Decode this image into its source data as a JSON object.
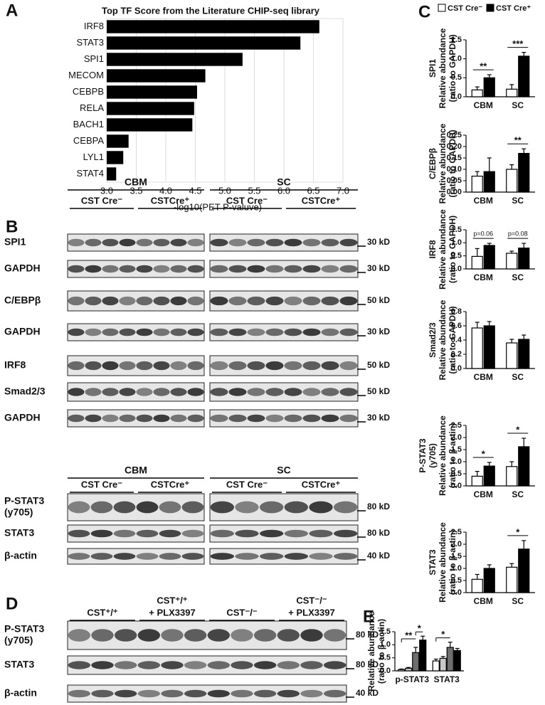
{
  "panel_labels": [
    "A",
    "B",
    "C",
    "D",
    "E"
  ],
  "chart_data": [
    {
      "type": "hbar",
      "title": "Top TF Score from the Literature CHIP-seq library",
      "categories": [
        "IRF8",
        "STAT3",
        "SPI1",
        "MECOM",
        "CEBPB",
        "RELA",
        "BACH1",
        "CEBPA",
        "LYL1",
        "STAT4"
      ],
      "values": [
        6.6,
        6.28,
        5.3,
        4.67,
        4.53,
        4.48,
        4.45,
        3.37,
        3.28,
        3.16
      ],
      "color": "#000000",
      "x_label": "-log10(PET P-valuve)",
      "xlim": [
        3,
        7
      ],
      "xticks": [
        {
          "value": 3,
          "label": "3.0"
        },
        3.5,
        {
          "value": 4,
          "label": "4.0"
        },
        4.5,
        {
          "value": 5,
          "label": "5.0"
        },
        5.5,
        {
          "value": 6,
          "label": "6.0"
        },
        6.5,
        {
          "value": 7,
          "label": "7.0"
        }
      ],
      "grid": true
    },
    {
      "type": "bar",
      "y_label": [
        "SPI1",
        "Relative abundance",
        "(ratio to GAPDH)"
      ],
      "categories": [
        "CBM",
        "SC"
      ],
      "series": [
        {
          "name": "CST Cre⁻",
          "color": "#ffffff",
          "values": [
            0.18,
            0.2
          ],
          "errors": [
            0.08,
            0.12
          ]
        },
        {
          "name": "CST Cre⁺",
          "color": "#000000",
          "values": [
            0.5,
            1.07
          ],
          "errors": [
            0.08,
            0.1
          ]
        }
      ],
      "ylim": [
        0,
        1.5
      ],
      "yticks": [
        {
          "value": 0,
          "label": "0.0"
        },
        0.5,
        {
          "value": 1,
          "label": "1.0"
        },
        1.5
      ],
      "annotations": [
        "**",
        "***"
      ]
    },
    {
      "type": "bar",
      "y_label": [
        "C/EBPβ",
        "Relative abundance",
        "(ratio to GAPDH)"
      ],
      "categories": [
        "CBM",
        "SC"
      ],
      "series": [
        {
          "color": "#ffffff",
          "values": [
            0.07,
            0.1
          ],
          "errors": [
            0.02,
            0.02
          ]
        },
        {
          "color": "#000000",
          "values": [
            0.09,
            0.17
          ],
          "errors": [
            0.06,
            0.02
          ]
        }
      ],
      "ylim": [
        0,
        0.25
      ],
      "yticks": [
        {
          "value": 0,
          "label": "0.00"
        },
        0.05,
        {
          "value": 0.1,
          "label": "0.10"
        },
        0.15,
        {
          "value": 0.2,
          "label": "0.20"
        },
        0.25
      ],
      "annotations": [
        null,
        "**"
      ]
    },
    {
      "type": "bar",
      "y_label": [
        "IRF8",
        "Relative abundance",
        "(ratio to GAPDH)"
      ],
      "categories": [
        "CBM",
        "SC"
      ],
      "series": [
        {
          "color": "#ffffff",
          "values": [
            0.48,
            0.6
          ],
          "errors": [
            0.3,
            0.08
          ]
        },
        {
          "color": "#000000",
          "values": [
            0.9,
            0.8
          ],
          "errors": [
            0.08,
            0.18
          ]
        }
      ],
      "ylim": [
        0,
        1.5
      ],
      "yticks": [
        {
          "value": 0,
          "label": "0.0"
        },
        0.5,
        {
          "value": 1,
          "label": "1.0"
        },
        1.5
      ],
      "annotations": [
        "p=0.06",
        "p=0.08"
      ]
    },
    {
      "type": "bar",
      "y_label": [
        "Smad2/3",
        "Relative abundance",
        "(ratio to GAPDH)"
      ],
      "categories": [
        "CBM",
        "SC"
      ],
      "series": [
        {
          "color": "#ffffff",
          "values": [
            0.57,
            0.36
          ],
          "errors": [
            0.08,
            0.05
          ]
        },
        {
          "color": "#000000",
          "values": [
            0.6,
            0.41
          ],
          "errors": [
            0.06,
            0.06
          ]
        }
      ],
      "ylim": [
        0,
        0.8
      ],
      "yticks": [
        {
          "value": 0,
          "label": "0.0"
        },
        0.2,
        0.4,
        0.6,
        0.8
      ]
    },
    {
      "type": "bar",
      "y_label": [
        "P-STAT3",
        "(y705)",
        "Relative abundance",
        "(ratio to β-actin)"
      ],
      "categories": [
        "CBM",
        "SC"
      ],
      "series": [
        {
          "color": "#ffffff",
          "values": [
            0.4,
            0.8
          ],
          "errors": [
            0.2,
            0.2
          ]
        },
        {
          "color": "#000000",
          "values": [
            0.82,
            1.62
          ],
          "errors": [
            0.15,
            0.35
          ]
        }
      ],
      "ylim": [
        0,
        2.5
      ],
      "yticks": [
        {
          "value": 0,
          "label": "0.0"
        },
        0.5,
        {
          "value": 1,
          "label": "1.0"
        },
        1.5,
        {
          "value": 2,
          "label": "2.0"
        },
        2.5
      ],
      "annotations": [
        "*",
        "*"
      ]
    },
    {
      "type": "bar",
      "y_label": [
        "STAT3",
        "Relative abundance",
        "(ratio to β-actin)"
      ],
      "categories": [
        "CBM",
        "SC"
      ],
      "series": [
        {
          "color": "#ffffff",
          "values": [
            0.55,
            1.05
          ],
          "errors": [
            0.2,
            0.15
          ]
        },
        {
          "color": "#000000",
          "values": [
            1.0,
            1.8
          ],
          "errors": [
            0.15,
            0.35
          ]
        }
      ],
      "ylim": [
        0,
        2.5
      ],
      "yticks": [
        {
          "value": 0,
          "label": "0.0"
        },
        0.5,
        {
          "value": 1,
          "label": "1.0"
        },
        1.5,
        {
          "value": 2,
          "label": "2.0"
        },
        2.5
      ],
      "annotations": [
        null,
        "*"
      ]
    },
    {
      "type": "bar4",
      "y_label": [
        "Relative abundance",
        "(ratio to β-actin)"
      ],
      "categories": [
        "p-STAT3",
        "STAT3"
      ],
      "series": [
        {
          "color": "#ffffff",
          "values": [
            0.05,
            0.38
          ],
          "errors": [
            0.02,
            0.07
          ]
        },
        {
          "color": "#c8c8c8",
          "values": [
            0.1,
            0.48
          ],
          "errors": [
            0.03,
            0.07
          ]
        },
        {
          "color": "#6e6e6e",
          "values": [
            0.7,
            0.9
          ],
          "errors": [
            0.2,
            0.2
          ]
        },
        {
          "color": "#000000",
          "values": [
            1.18,
            0.78
          ],
          "errors": [
            0.15,
            0.08
          ]
        }
      ],
      "ylim": [
        0,
        1.5
      ],
      "yticks": [
        {
          "value": 0,
          "label": "0.0"
        },
        0.5,
        {
          "value": 1,
          "label": "1.0"
        },
        1.5
      ],
      "annotations": [
        "**",
        "*",
        "*"
      ]
    }
  ],
  "blots": {
    "B_upper": {
      "groups": [
        "CBM",
        "SC"
      ],
      "subgroups": [
        [
          "CST Cre⁻",
          "CSTCre⁺"
        ],
        [
          "CST Cre⁻",
          "CSTCre⁺"
        ]
      ],
      "rows": [
        {
          "label": "SPI1",
          "marker": "30 kD"
        },
        {
          "label": "GAPDH",
          "marker": "30 kD"
        },
        {
          "label": "C/EBPβ",
          "marker": "50 kD"
        },
        {
          "label": "GAPDH",
          "marker": "30 kD"
        },
        {
          "label": "IRF8",
          "marker": "50 kD"
        },
        {
          "label": "Smad2/3",
          "marker": "50 kD"
        },
        {
          "label": "GAPDH",
          "marker": "30 kD"
        }
      ]
    },
    "B_lower": {
      "groups": [
        "CBM",
        "SC"
      ],
      "subgroups": [
        [
          "CST Cre⁻",
          "CSTCre⁺"
        ],
        [
          "CST Cre⁻",
          "CSTCre⁺"
        ]
      ],
      "rows": [
        {
          "label": [
            "P-STAT3",
            "(y705)"
          ],
          "marker": "80 kD"
        },
        {
          "label": "STAT3",
          "marker": "80 kD"
        },
        {
          "label": "β-actin",
          "marker": "40 kD"
        }
      ]
    },
    "D": {
      "subgroups": [
        [
          "CST⁺/⁺",
          [
            "CST⁺/⁺",
            "+ PLX3397"
          ],
          "CST⁻/⁻",
          [
            "CST⁻/⁻",
            "+ PLX3397"
          ]
        ]
      ],
      "rows": [
        {
          "label": [
            "P-STAT3",
            "(y705)"
          ],
          "marker": "80 kD"
        },
        {
          "label": "STAT3",
          "marker": "80 kD"
        },
        {
          "label": "β-actin",
          "marker": "40 kD"
        }
      ]
    }
  }
}
